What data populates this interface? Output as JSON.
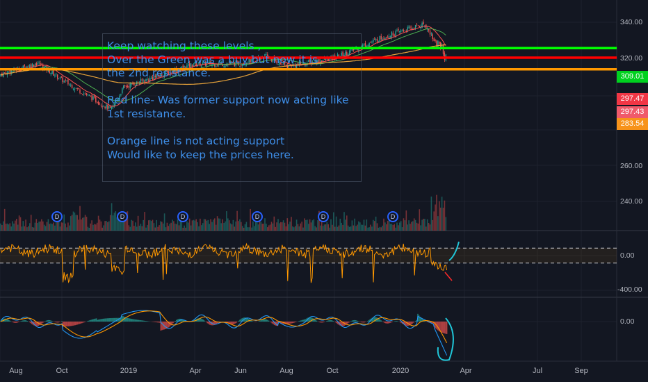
{
  "annotation": {
    "lines": [
      "Keep watching these levels ,",
      "Over the Green was a buy but now it is",
      "the 2nd resistance.",
      "",
      "Red line- Was former support now acting like",
      "1st resistance.",
      "",
      "Orange line is not acting support",
      "Would like to keep the prices here."
    ]
  },
  "price_labels": [
    {
      "value": "309.01",
      "color": "#00d11f"
    },
    {
      "value": "297.47",
      "color": "#f23645"
    },
    {
      "value": "297.43",
      "color": "#f05a6a"
    },
    {
      "value": "283.54",
      "color": "#f7931a"
    }
  ],
  "dividend_marker": "D",
  "chart_data": [
    {
      "type": "candlestick",
      "panel": "price",
      "y_ticks": [
        "340.00",
        "320.00",
        "260.00",
        "240.00"
      ],
      "ylim": [
        231,
        345
      ],
      "x_ticks": [
        "Aug",
        "Oct",
        "2019",
        "Apr",
        "Jun",
        "Aug",
        "Oct",
        "2020",
        "Apr",
        "Jul",
        "Sep"
      ],
      "horizontal_levels": [
        {
          "value": 309.01,
          "color": "#00ff00"
        },
        {
          "value": 297.47,
          "color": "#ff0000"
        },
        {
          "value": 283.54,
          "color": "#ff9800"
        }
      ],
      "approx_close_path": [
        {
          "date": "2018-07",
          "close": 275
        },
        {
          "date": "2018-09",
          "close": 291
        },
        {
          "date": "2018-10",
          "close": 271
        },
        {
          "date": "2018-12",
          "close": 235
        },
        {
          "date": "2019-01",
          "close": 262
        },
        {
          "date": "2019-04",
          "close": 290
        },
        {
          "date": "2019-06",
          "close": 290
        },
        {
          "date": "2019-07",
          "close": 300
        },
        {
          "date": "2019-08",
          "close": 287
        },
        {
          "date": "2019-10",
          "close": 297
        },
        {
          "date": "2019-12",
          "close": 322
        },
        {
          "date": "2020-02",
          "close": 338
        },
        {
          "date": "2020-03",
          "close": 297
        }
      ]
    },
    {
      "type": "line",
      "panel": "oscillator",
      "y_ticks": [
        "0.00",
        "-400.00"
      ],
      "series": [
        {
          "color": "#ff9800"
        }
      ],
      "bands": [
        100,
        -100
      ]
    },
    {
      "type": "line",
      "panel": "macd",
      "y_ticks": [
        "0.00"
      ],
      "series": [
        {
          "color": "#2196f3"
        },
        {
          "color": "#ff9800"
        }
      ]
    }
  ]
}
